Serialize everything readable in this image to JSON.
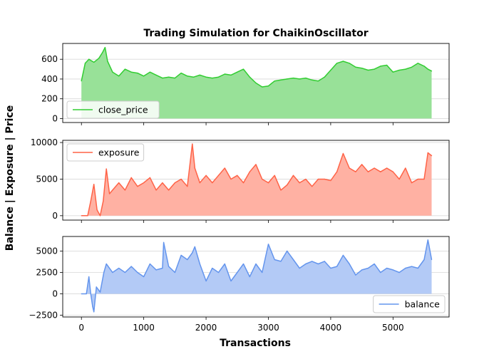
{
  "chart_data": {
    "type": "area",
    "title": "Trading Simulation for ChaikinOscillator",
    "xlabel": "Transactions",
    "ylabel": "Balance | Exposure | Price",
    "xlim": [
      -300,
      5900
    ],
    "x_ticks": [
      0,
      1000,
      2000,
      3000,
      4000,
      5000
    ],
    "x_tick_labels": [
      "0",
      "1000",
      "2000",
      "3000",
      "4000",
      "5000"
    ],
    "panels": [
      {
        "series": [
          {
            "name": "close_price",
            "color": "#32cd32",
            "fill": "#98e198",
            "x": [
              0,
              60,
              120,
              200,
              280,
              340,
              380,
              420,
              500,
              600,
              700,
              800,
              900,
              1000,
              1100,
              1200,
              1300,
              1400,
              1500,
              1600,
              1700,
              1800,
              1900,
              2000,
              2100,
              2200,
              2300,
              2400,
              2500,
              2600,
              2700,
              2800,
              2900,
              3000,
              3100,
              3200,
              3300,
              3400,
              3500,
              3600,
              3700,
              3800,
              3900,
              4000,
              4100,
              4200,
              4300,
              4400,
              4500,
              4600,
              4700,
              4800,
              4900,
              5000,
              5100,
              5200,
              5300,
              5400,
              5500,
              5560,
              5620
            ],
            "values": [
              380,
              560,
              600,
              570,
              610,
              670,
              720,
              580,
              470,
              430,
              500,
              470,
              460,
              430,
              470,
              440,
              410,
              420,
              410,
              460,
              430,
              420,
              440,
              420,
              410,
              420,
              450,
              440,
              470,
              500,
              420,
              360,
              320,
              330,
              380,
              390,
              400,
              410,
              400,
              410,
              390,
              380,
              420,
              490,
              560,
              580,
              560,
              520,
              510,
              490,
              500,
              530,
              540,
              470,
              490,
              500,
              520,
              560,
              530,
              500,
              480
            ]
          }
        ],
        "ylim": [
          -40,
          760
        ],
        "y_ticks": [
          0,
          200,
          400,
          600
        ],
        "y_tick_labels": [
          "0",
          "200",
          "400",
          "600"
        ],
        "legend_position": "lower-left"
      },
      {
        "series": [
          {
            "name": "exposure",
            "color": "#ff6347",
            "fill": "#ffb1a3",
            "x": [
              0,
              100,
              150,
              200,
              250,
              300,
              350,
              400,
              450,
              500,
              600,
              700,
              800,
              900,
              1000,
              1100,
              1200,
              1300,
              1400,
              1500,
              1600,
              1700,
              1780,
              1820,
              1900,
              2000,
              2100,
              2200,
              2300,
              2400,
              2500,
              2600,
              2700,
              2800,
              2900,
              3000,
              3100,
              3200,
              3300,
              3400,
              3500,
              3600,
              3700,
              3800,
              3900,
              4000,
              4100,
              4200,
              4300,
              4400,
              4500,
              4600,
              4700,
              4800,
              4900,
              5000,
              5100,
              5200,
              5300,
              5400,
              5500,
              5560,
              5620
            ],
            "values": [
              0,
              0,
              2000,
              4300,
              800,
              0,
              2000,
              6400,
              3000,
              3500,
              4500,
              3500,
              5200,
              4000,
              4500,
              5200,
              3500,
              4500,
              3500,
              4500,
              5000,
              4000,
              9800,
              6500,
              4500,
              5500,
              4500,
              5500,
              6500,
              5000,
              5500,
              4500,
              6000,
              7000,
              5000,
              4500,
              5500,
              3500,
              4200,
              5500,
              4500,
              5000,
              4000,
              5000,
              5000,
              4800,
              6000,
              8500,
              6500,
              6000,
              7000,
              6000,
              6500,
              6000,
              6500,
              6000,
              5000,
              6500,
              4500,
              5000,
              5000,
              8600,
              8200
            ]
          }
        ],
        "ylim": [
          -600,
          10300
        ],
        "y_ticks": [
          0,
          5000,
          10000
        ],
        "y_tick_labels": [
          "0",
          "5000",
          "10000"
        ],
        "legend_position": "upper-left"
      },
      {
        "series": [
          {
            "name": "balance",
            "color": "#6495ed",
            "fill": "#b3caf6",
            "x": [
              0,
              80,
              120,
              150,
              180,
              200,
              240,
              300,
              360,
              400,
              500,
              600,
              700,
              800,
              900,
              1000,
              1100,
              1200,
              1300,
              1320,
              1400,
              1500,
              1600,
              1700,
              1780,
              1820,
              1900,
              2000,
              2100,
              2200,
              2300,
              2400,
              2500,
              2600,
              2700,
              2800,
              2900,
              3000,
              3100,
              3200,
              3300,
              3400,
              3500,
              3600,
              3700,
              3800,
              3900,
              4000,
              4100,
              4200,
              4300,
              4400,
              4500,
              4600,
              4700,
              4800,
              4900,
              5000,
              5100,
              5200,
              5300,
              5400,
              5500,
              5560,
              5620
            ],
            "values": [
              0,
              0,
              2000,
              0,
              -1500,
              -2100,
              800,
              200,
              2500,
              3500,
              2500,
              3000,
              2500,
              3200,
              2500,
              2000,
              3500,
              2800,
              3000,
              6000,
              3200,
              2500,
              4500,
              4000,
              4800,
              5500,
              3500,
              1500,
              3000,
              2500,
              3500,
              1500,
              2500,
              3500,
              2000,
              3500,
              2500,
              5800,
              4000,
              3800,
              5000,
              4000,
              3000,
              3500,
              3800,
              3500,
              3800,
              3000,
              3200,
              4500,
              3500,
              2200,
              2800,
              3000,
              3500,
              2500,
              3000,
              2800,
              2500,
              3000,
              3200,
              3000,
              4000,
              6300,
              4000
            ]
          }
        ],
        "ylim": [
          -2700,
          6700
        ],
        "y_ticks": [
          -2500,
          0,
          2500,
          5000
        ],
        "y_tick_labels": [
          "−2500",
          "0",
          "2500",
          "5000"
        ],
        "legend_position": "lower-right"
      }
    ],
    "grid": "horizontal"
  }
}
